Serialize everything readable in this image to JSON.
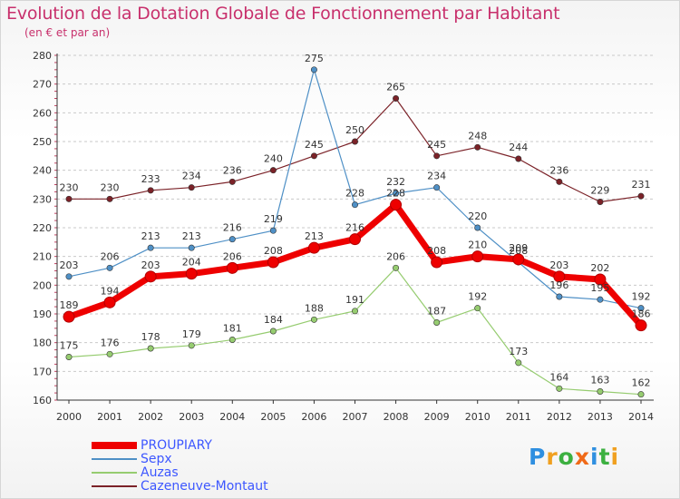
{
  "chart_data": {
    "type": "line",
    "title": "Evolution de la Dotation Globale de Fonctionnement par Habitant",
    "subtitle": "(en € et par an)",
    "x": [
      "2000",
      "2001",
      "2002",
      "2003",
      "2004",
      "2005",
      "2006",
      "2007",
      "2008",
      "2009",
      "2010",
      "2011",
      "2012",
      "2013",
      "2014"
    ],
    "yticks": [
      "160",
      "170",
      "180",
      "190",
      "200",
      "210",
      "220",
      "230",
      "240",
      "250",
      "260",
      "270",
      "280"
    ],
    "ylim": [
      160,
      280
    ],
    "grid": "horizontal dashed",
    "legend_position": "bottom-left",
    "series": [
      {
        "name": "Cazeneuve-Montaut",
        "color": "#7b2228",
        "values": [
          230,
          230,
          233,
          234,
          236,
          240,
          245,
          250,
          265,
          245,
          248,
          244,
          236,
          229,
          231
        ],
        "labels": [
          "230",
          "230",
          "233",
          "234",
          "236",
          "240",
          "245",
          "250",
          "265",
          "245",
          "248",
          "244",
          "236",
          "229",
          "231"
        ]
      },
      {
        "name": "Sepx",
        "color": "#4f90c6",
        "values": [
          203,
          206,
          213,
          213,
          216,
          219,
          275,
          228,
          232,
          234,
          220,
          208,
          196,
          195,
          192
        ],
        "labels": [
          "203",
          "206",
          "213",
          "213",
          "216",
          "219",
          "275",
          "228",
          "232",
          "234",
          "220",
          "208",
          "196",
          "195",
          "192"
        ]
      },
      {
        "name": "Auzas",
        "color": "#96cc70",
        "values": [
          175,
          176,
          178,
          179,
          181,
          184,
          188,
          191,
          206,
          187,
          192,
          173,
          164,
          163,
          162
        ],
        "labels": [
          "175",
          "176",
          "178",
          "179",
          "181",
          "184",
          "188",
          "191",
          "206",
          "187",
          "192",
          "173",
          "164",
          "163",
          "162"
        ]
      },
      {
        "name": "PROUPIARY",
        "color": "#ee0000",
        "values": [
          189,
          194,
          203,
          204,
          206,
          208,
          213,
          216,
          228,
          208,
          210,
          209,
          203,
          202,
          186
        ],
        "labels": [
          "189",
          "194",
          "203",
          "204",
          "206",
          "208",
          "213",
          "216",
          "228",
          "208",
          "210",
          "209",
          "203",
          "202",
          "186"
        ]
      }
    ],
    "legend_order": [
      "PROUPIARY",
      "Sepx",
      "Auzas",
      "Cazeneuve-Montaut"
    ]
  },
  "logo": {
    "text": "Proxiti"
  }
}
